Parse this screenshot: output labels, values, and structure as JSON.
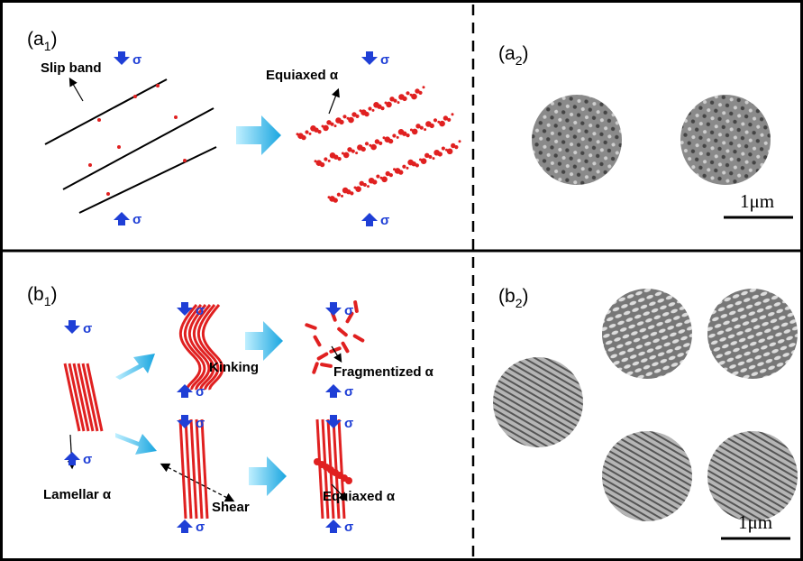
{
  "panels": [
    {
      "main": "(a",
      "sub": "1",
      "close": ")"
    },
    {
      "main": "(a",
      "sub": "2",
      "close": ")"
    },
    {
      "main": "(b",
      "sub": "1",
      "close": ")"
    },
    {
      "main": "(b",
      "sub": "2",
      "close": ")"
    }
  ],
  "stress": "σ",
  "labels": {
    "slip_band": "Slip band",
    "equiaxed_top": "Equiaxed α",
    "kinking": "Kinking",
    "fragmentized": "Fragmentized α",
    "lamellar": "Lamellar α",
    "shear": "Shear",
    "equiaxed_bottom": "Equiaxed α"
  },
  "scale_bars": [
    "1μm",
    "1μm"
  ]
}
